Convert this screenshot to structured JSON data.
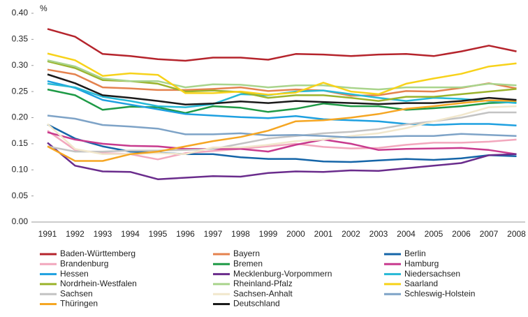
{
  "chart_data": {
    "type": "line",
    "ylabel": "%",
    "categories": [
      "1991",
      "1992",
      "1993",
      "1994",
      "1995",
      "1996",
      "1997",
      "1998",
      "1999",
      "2000",
      "2001",
      "2002",
      "2003",
      "2004",
      "2005",
      "2006",
      "2007",
      "2008"
    ],
    "ylim": [
      0,
      0.4
    ],
    "yticks": [
      {
        "value": 0,
        "label": "0.00"
      },
      {
        "value": 0.05,
        "label": "0.05"
      },
      {
        "value": 0.1,
        "label": "0.10"
      },
      {
        "value": 0.15,
        "label": "0.15"
      },
      {
        "value": 0.2,
        "label": "0.20"
      },
      {
        "value": 0.25,
        "label": "0.25"
      },
      {
        "value": 0.3,
        "label": "0.30"
      },
      {
        "value": 0.35,
        "label": "0.35"
      },
      {
        "value": 0.4,
        "label": "0.40"
      }
    ],
    "series": [
      {
        "name": "Baden-Württemberg",
        "color": "#b5242c",
        "values": [
          0.37,
          0.355,
          0.322,
          0.318,
          0.312,
          0.309,
          0.315,
          0.315,
          0.311,
          0.322,
          0.321,
          0.318,
          0.321,
          0.322,
          0.318,
          0.327,
          0.338,
          0.327
        ]
      },
      {
        "name": "Bayern",
        "color": "#e4824e",
        "values": [
          0.292,
          0.283,
          0.258,
          0.256,
          0.253,
          0.253,
          0.255,
          0.258,
          0.251,
          0.254,
          0.252,
          0.242,
          0.243,
          0.251,
          0.25,
          0.257,
          0.266,
          0.256
        ]
      },
      {
        "name": "Berlin",
        "color": "#1565a8",
        "values": [
          0.187,
          0.16,
          0.145,
          0.135,
          0.133,
          0.13,
          0.13,
          0.124,
          0.121,
          0.121,
          0.116,
          0.115,
          0.118,
          0.121,
          0.119,
          0.122,
          0.128,
          0.126
        ]
      },
      {
        "name": "Brandenburg",
        "color": "#f2a7bd",
        "values": [
          0.175,
          0.138,
          0.132,
          0.13,
          0.12,
          0.132,
          0.136,
          0.14,
          0.145,
          0.15,
          0.144,
          0.141,
          0.142,
          0.148,
          0.152,
          0.152,
          0.154,
          0.158
        ]
      },
      {
        "name": "Bremen",
        "color": "#1e9a46",
        "values": [
          0.254,
          0.243,
          0.215,
          0.221,
          0.22,
          0.209,
          0.222,
          0.219,
          0.211,
          0.217,
          0.227,
          0.222,
          0.222,
          0.215,
          0.218,
          0.222,
          0.228,
          0.23
        ]
      },
      {
        "name": "Hamburg",
        "color": "#c83a8e",
        "values": [
          0.172,
          0.158,
          0.15,
          0.146,
          0.145,
          0.14,
          0.14,
          0.14,
          0.135,
          0.148,
          0.158,
          0.15,
          0.138,
          0.14,
          0.141,
          0.142,
          0.138,
          0.13
        ]
      },
      {
        "name": "Hessen",
        "color": "#1ea0e0",
        "values": [
          0.27,
          0.257,
          0.234,
          0.225,
          0.216,
          0.207,
          0.204,
          0.201,
          0.199,
          0.203,
          0.197,
          0.195,
          0.193,
          0.188,
          0.186,
          0.188,
          0.188,
          0.185
        ]
      },
      {
        "name": "Mecklenburg-Vorpommern",
        "color": "#6a2c8c",
        "values": [
          0.152,
          0.108,
          0.097,
          0.096,
          0.082,
          0.085,
          0.088,
          0.087,
          0.094,
          0.097,
          0.096,
          0.099,
          0.098,
          0.103,
          0.108,
          0.113,
          0.128,
          0.13
        ]
      },
      {
        "name": "Niedersachsen",
        "color": "#27b9d6",
        "values": [
          0.265,
          0.258,
          0.24,
          0.232,
          0.222,
          0.22,
          0.226,
          0.245,
          0.243,
          0.25,
          0.252,
          0.245,
          0.238,
          0.232,
          0.238,
          0.236,
          0.232,
          0.228
        ]
      },
      {
        "name": "Nordrhein-Westfalen",
        "color": "#9bb32c",
        "values": [
          0.308,
          0.295,
          0.272,
          0.27,
          0.265,
          0.25,
          0.252,
          0.249,
          0.238,
          0.243,
          0.243,
          0.238,
          0.232,
          0.24,
          0.24,
          0.245,
          0.25,
          0.255
        ]
      },
      {
        "name": "Rheinland-Pfalz",
        "color": "#a9d48c",
        "values": [
          0.31,
          0.298,
          0.275,
          0.27,
          0.27,
          0.258,
          0.264,
          0.263,
          0.258,
          0.262,
          0.262,
          0.257,
          0.254,
          0.258,
          0.258,
          0.258,
          0.265,
          0.262
        ]
      },
      {
        "name": "Saarland",
        "color": "#f7d21a",
        "values": [
          0.323,
          0.31,
          0.28,
          0.285,
          0.282,
          0.247,
          0.247,
          0.25,
          0.244,
          0.248,
          0.267,
          0.25,
          0.245,
          0.265,
          0.275,
          0.284,
          0.298,
          0.304
        ]
      },
      {
        "name": "Sachsen",
        "color": "#c3c3c3",
        "values": [
          0.145,
          0.135,
          0.135,
          0.137,
          0.137,
          0.138,
          0.14,
          0.15,
          0.16,
          0.165,
          0.17,
          0.173,
          0.178,
          0.187,
          0.193,
          0.2,
          0.21,
          0.21
        ]
      },
      {
        "name": "Sachsen-Anhalt",
        "color": "#f1e7cc",
        "values": [
          0.188,
          0.14,
          0.13,
          0.13,
          0.132,
          0.13,
          0.143,
          0.143,
          0.148,
          0.155,
          0.158,
          0.165,
          0.17,
          0.18,
          0.193,
          0.205,
          0.22,
          0.222
        ]
      },
      {
        "name": "Schleswig-Holstein",
        "color": "#7ea3c7",
        "values": [
          0.204,
          0.198,
          0.186,
          0.183,
          0.179,
          0.168,
          0.168,
          0.17,
          0.166,
          0.167,
          0.165,
          0.162,
          0.163,
          0.165,
          0.165,
          0.169,
          0.167,
          0.165
        ]
      },
      {
        "name": "Thüringen",
        "color": "#f5a623",
        "values": [
          0.145,
          0.117,
          0.117,
          0.13,
          0.135,
          0.145,
          0.155,
          0.163,
          0.175,
          0.193,
          0.195,
          0.2,
          0.207,
          0.217,
          0.222,
          0.228,
          0.233,
          0.232
        ]
      },
      {
        "name": "Deutschland",
        "color": "#1a1a1a",
        "values": [
          0.283,
          0.266,
          0.243,
          0.238,
          0.232,
          0.225,
          0.227,
          0.231,
          0.228,
          0.232,
          0.23,
          0.228,
          0.226,
          0.228,
          0.228,
          0.232,
          0.238,
          0.234
        ]
      }
    ]
  }
}
